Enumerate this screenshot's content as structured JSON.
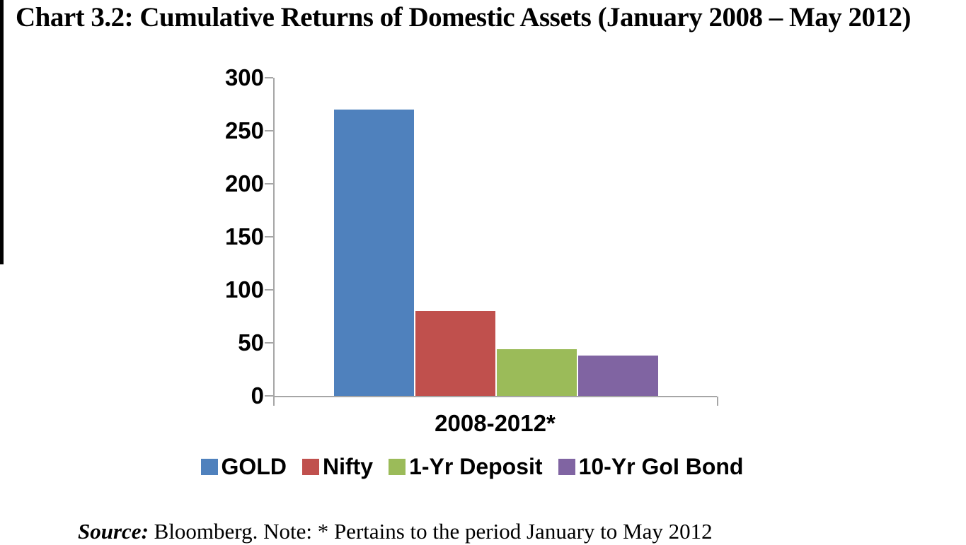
{
  "title": "Chart 3.2: Cumulative Returns of Domestic Assets (January 2008 – May 2012)",
  "source": {
    "label": "Source:",
    "text": " Bloomberg. Note: * Pertains to the period January to May 2012"
  },
  "colors": {
    "axis": "#A6A6A6",
    "text": "#000000",
    "page_edge": "#000000"
  },
  "chart_data": {
    "type": "bar",
    "title": "Chart 3.2: Cumulative Returns of Domestic Assets (January 2008 – May 2012)",
    "categories": [
      "2008-2012*"
    ],
    "series": [
      {
        "name": "GOLD",
        "values": [
          270
        ],
        "color": "#4F81BD"
      },
      {
        "name": "Nifty",
        "values": [
          80
        ],
        "color": "#C0504D"
      },
      {
        "name": "1-Yr Deposit",
        "values": [
          44
        ],
        "color": "#9BBB59"
      },
      {
        "name": "10-Yr GoI Bond",
        "values": [
          38
        ],
        "color": "#8064A2"
      }
    ],
    "xlabel": "",
    "ylabel": "",
    "ylim": [
      0,
      300
    ],
    "yticks": [
      0,
      50,
      100,
      150,
      200,
      250,
      300
    ],
    "grid": false,
    "legend_position": "bottom",
    "annotation": "Source: Bloomberg. Note: * Pertains to the period January to May 2012"
  }
}
